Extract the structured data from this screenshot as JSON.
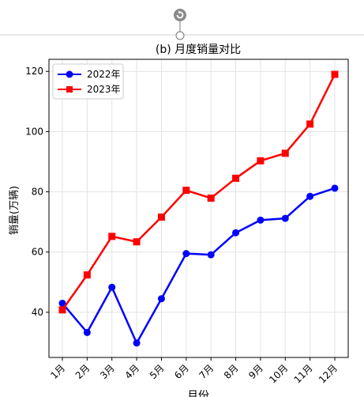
{
  "chart_data": {
    "type": "line",
    "title": "(b) 月度销量对比",
    "xlabel": "月份",
    "ylabel": "销量(万辆)",
    "categories": [
      "1月",
      "2月",
      "3月",
      "4月",
      "5月",
      "6月",
      "7月",
      "8月",
      "9月",
      "10月",
      "11月",
      "12月"
    ],
    "ylim": [
      25,
      124
    ],
    "yticks": [
      40,
      60,
      80,
      100,
      120
    ],
    "grid": true,
    "legend_position": "top-left",
    "series": [
      {
        "name": "2022年",
        "color": "#0000ff",
        "marker": "circle",
        "values": [
          43.0,
          33.3,
          48.3,
          29.8,
          44.5,
          59.5,
          59.1,
          66.4,
          70.6,
          71.2,
          78.5,
          81.2
        ]
      },
      {
        "name": "2023年",
        "color": "#ff0000",
        "marker": "square",
        "values": [
          40.8,
          52.4,
          65.2,
          63.4,
          71.6,
          80.5,
          77.9,
          84.5,
          90.3,
          92.8,
          102.5,
          119.0
        ]
      }
    ]
  },
  "toolbar": {
    "rotate_icon": "rotate-handle-icon"
  }
}
